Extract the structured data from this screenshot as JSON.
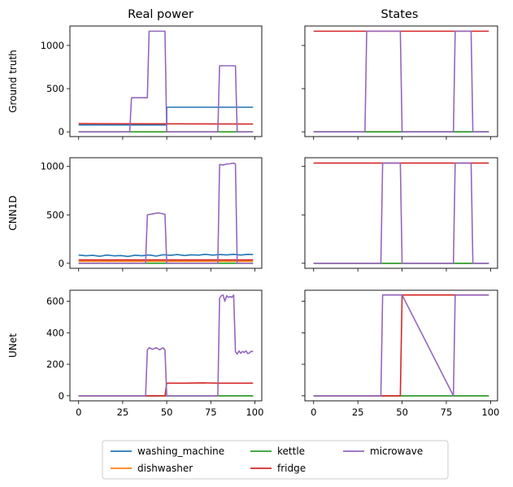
{
  "chart_data": {
    "type": "line",
    "column_titles": [
      "Real power",
      "States"
    ],
    "legend": {
      "placement": "bottom-center",
      "entries": [
        {
          "name": "washing_machine",
          "color": "#1f77b4"
        },
        {
          "name": "dishwasher",
          "color": "#ff7f0e"
        },
        {
          "name": "kettle",
          "color": "#2ca02c"
        },
        {
          "name": "fridge",
          "color": "#d62728"
        },
        {
          "name": "microwave",
          "color": "#9467bd"
        }
      ]
    },
    "x_ticks": [
      0,
      25,
      50,
      75,
      100
    ],
    "xlim": [
      -4.95,
      103.95
    ],
    "grid": false,
    "rows": [
      {
        "ylabel": "Ground truth",
        "ylim": [
          -55,
          1225
        ],
        "yticks": [
          0,
          500,
          1000
        ],
        "power": [
          {
            "name": "washing_machine",
            "points": [
              [
                0,
                80
              ],
              [
                50,
                80
              ],
              [
                50,
                285
              ],
              [
                99,
                285
              ]
            ]
          },
          {
            "name": "dishwasher",
            "points": [
              [
                0,
                0
              ],
              [
                99,
                0
              ]
            ]
          },
          {
            "name": "kettle",
            "points": [
              [
                0,
                0
              ],
              [
                99,
                0
              ]
            ]
          },
          {
            "name": "fridge",
            "points": [
              [
                0,
                95
              ],
              [
                99,
                90
              ]
            ]
          },
          {
            "name": "microwave",
            "points": [
              [
                0,
                0
              ],
              [
                29,
                0
              ],
              [
                30,
                395
              ],
              [
                39,
                395
              ],
              [
                40,
                1165
              ],
              [
                49,
                1165
              ],
              [
                50,
                0
              ],
              [
                79,
                0
              ],
              [
                80,
                765
              ],
              [
                89,
                765
              ],
              [
                90,
                0
              ],
              [
                99,
                0
              ]
            ]
          }
        ],
        "states": [
          {
            "name": "washing_machine",
            "points": [
              [
                0,
                0
              ],
              [
                99,
                0
              ]
            ]
          },
          {
            "name": "dishwasher",
            "points": [
              [
                0,
                0
              ],
              [
                99,
                0
              ]
            ]
          },
          {
            "name": "kettle",
            "points": [
              [
                0,
                0
              ],
              [
                99,
                0
              ]
            ]
          },
          {
            "name": "fridge",
            "points": [
              [
                0,
                1165
              ],
              [
                99,
                1165
              ]
            ]
          },
          {
            "name": "microwave",
            "points": [
              [
                0,
                0
              ],
              [
                29,
                0
              ],
              [
                30,
                1165
              ],
              [
                49,
                1165
              ],
              [
                50,
                0
              ],
              [
                79,
                0
              ],
              [
                80,
                1165
              ],
              [
                89,
                1165
              ],
              [
                90,
                0
              ],
              [
                99,
                0
              ]
            ]
          }
        ]
      },
      {
        "ylabel": "CNN1D",
        "ylim": [
          -52,
          1090
        ],
        "yticks": [
          0,
          500,
          1000
        ],
        "power": [
          {
            "name": "washing_machine",
            "points": [
              [
                0,
                85
              ],
              [
                4,
                78
              ],
              [
                8,
                82
              ],
              [
                12,
                72
              ],
              [
                16,
                85
              ],
              [
                20,
                77
              ],
              [
                24,
                80
              ],
              [
                28,
                70
              ],
              [
                32,
                83
              ],
              [
                36,
                78
              ],
              [
                40,
                86
              ],
              [
                44,
                74
              ],
              [
                48,
                88
              ],
              [
                52,
                82
              ],
              [
                56,
                90
              ],
              [
                60,
                80
              ],
              [
                64,
                87
              ],
              [
                68,
                84
              ],
              [
                72,
                92
              ],
              [
                76,
                84
              ],
              [
                80,
                90
              ],
              [
                84,
                86
              ],
              [
                88,
                92
              ],
              [
                92,
                85
              ],
              [
                96,
                92
              ],
              [
                99,
                90
              ]
            ]
          },
          {
            "name": "dishwasher",
            "points": [
              [
                0,
                20
              ],
              [
                99,
                20
              ]
            ]
          },
          {
            "name": "kettle",
            "points": [
              [
                0,
                0
              ],
              [
                99,
                0
              ]
            ]
          },
          {
            "name": "fridge",
            "points": [
              [
                0,
                35
              ],
              [
                99,
                35
              ]
            ]
          },
          {
            "name": "microwave",
            "points": [
              [
                0,
                0
              ],
              [
                38,
                0
              ],
              [
                39,
                500
              ],
              [
                42,
                510
              ],
              [
                45,
                520
              ],
              [
                47,
                515
              ],
              [
                49,
                505
              ],
              [
                50,
                0
              ],
              [
                79,
                0
              ],
              [
                80,
                1020
              ],
              [
                82,
                1015
              ],
              [
                84,
                1025
              ],
              [
                86,
                1028
              ],
              [
                88,
                1035
              ],
              [
                89,
                1025
              ],
              [
                90,
                0
              ],
              [
                99,
                0
              ]
            ]
          }
        ],
        "states": [
          {
            "name": "washing_machine",
            "points": [
              [
                0,
                0
              ],
              [
                99,
                0
              ]
            ]
          },
          {
            "name": "dishwasher",
            "points": [
              [
                0,
                0
              ],
              [
                99,
                0
              ]
            ]
          },
          {
            "name": "kettle",
            "points": [
              [
                0,
                0
              ],
              [
                99,
                0
              ]
            ]
          },
          {
            "name": "fridge",
            "points": [
              [
                0,
                1035
              ],
              [
                99,
                1035
              ]
            ]
          },
          {
            "name": "microwave",
            "points": [
              [
                0,
                0
              ],
              [
                38,
                0
              ],
              [
                39,
                1035
              ],
              [
                49,
                1035
              ],
              [
                50,
                0
              ],
              [
                79,
                0
              ],
              [
                80,
                1035
              ],
              [
                89,
                1035
              ],
              [
                90,
                0
              ],
              [
                99,
                0
              ]
            ]
          }
        ]
      },
      {
        "ylabel": "UNet",
        "ylim": [
          -32,
          670
        ],
        "yticks": [
          0,
          200,
          400,
          600
        ],
        "power": [
          {
            "name": "washing_machine",
            "points": [
              [
                0,
                0
              ],
              [
                99,
                0
              ]
            ]
          },
          {
            "name": "dishwasher",
            "points": [
              [
                0,
                0
              ],
              [
                99,
                0
              ]
            ]
          },
          {
            "name": "kettle",
            "points": [
              [
                0,
                0
              ],
              [
                99,
                0
              ]
            ]
          },
          {
            "name": "fridge",
            "points": [
              [
                0,
                0
              ],
              [
                49,
                0
              ],
              [
                50,
                80
              ],
              [
                60,
                80
              ],
              [
                70,
                82
              ],
              [
                80,
                80
              ],
              [
                99,
                80
              ]
            ]
          },
          {
            "name": "microwave",
            "points": [
              [
                0,
                0
              ],
              [
                38,
                0
              ],
              [
                39,
                290
              ],
              [
                40,
                305
              ],
              [
                42,
                295
              ],
              [
                44,
                305
              ],
              [
                46,
                292
              ],
              [
                48,
                305
              ],
              [
                49,
                290
              ],
              [
                50,
                0
              ],
              [
                79,
                0
              ],
              [
                80,
                620
              ],
              [
                81,
                635
              ],
              [
                82,
                640
              ],
              [
                83,
                600
              ],
              [
                84,
                635
              ],
              [
                85,
                625
              ],
              [
                86,
                630
              ],
              [
                87,
                625
              ],
              [
                88,
                640
              ],
              [
                89,
                280
              ],
              [
                90,
                265
              ],
              [
                91,
                285
              ],
              [
                92,
                270
              ],
              [
                93,
                282
              ],
              [
                94,
                275
              ],
              [
                95,
                285
              ],
              [
                96,
                268
              ],
              [
                97,
                272
              ],
              [
                98,
                283
              ],
              [
                99,
                280
              ]
            ]
          }
        ],
        "states": [
          {
            "name": "washing_machine",
            "points": [
              [
                0,
                0
              ],
              [
                99,
                0
              ]
            ]
          },
          {
            "name": "dishwasher",
            "points": [
              [
                0,
                0
              ],
              [
                99,
                0
              ]
            ]
          },
          {
            "name": "kettle",
            "points": [
              [
                0,
                0
              ],
              [
                99,
                0
              ]
            ]
          },
          {
            "name": "fridge",
            "points": [
              [
                0,
                0
              ],
              [
                49,
                0
              ],
              [
                50,
                640
              ],
              [
                99,
                640
              ]
            ]
          },
          {
            "name": "microwave",
            "points": [
              [
                0,
                0
              ],
              [
                38,
                0
              ],
              [
                39,
                640
              ],
              [
                49,
                640
              ],
              [
                50,
                640
              ],
              [
                79,
                0
              ],
              [
                80,
                640
              ],
              [
                99,
                640
              ]
            ]
          }
        ]
      }
    ]
  }
}
